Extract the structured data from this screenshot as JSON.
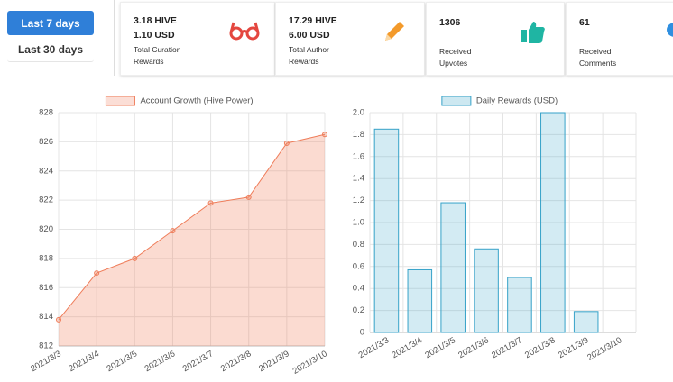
{
  "buttons": [
    "Last 7 days",
    "Last 30 days"
  ],
  "stats": [
    {
      "lines": [
        "3.18 HIVE",
        "1.10 USD"
      ],
      "label": "Total Curation Rewards"
    },
    {
      "lines": [
        "17.29 HIVE",
        "6.00 USD"
      ],
      "label": "Total Author Rewards"
    },
    {
      "lines": [
        "1306"
      ],
      "label": "Received Upvotes"
    },
    {
      "lines": [
        "61"
      ],
      "label": "Received Comments"
    }
  ],
  "chart_data": [
    {
      "type": "line",
      "categories": [
        "2021/3/3",
        "2021/3/4",
        "2021/3/5",
        "2021/3/6",
        "2021/3/7",
        "2021/3/8",
        "2021/3/9",
        "2021/3/10"
      ],
      "series": [
        {
          "name": "Account Growth (Hive Power)",
          "color": "#ef7d5a",
          "values": [
            813.8,
            817.0,
            818.0,
            819.9,
            821.8,
            822.2,
            825.9,
            826.5
          ]
        }
      ],
      "ylim": [
        812,
        828
      ],
      "yticks": [
        812,
        814,
        816,
        818,
        820,
        822,
        824,
        826,
        828
      ],
      "grid": true
    },
    {
      "type": "bar",
      "categories": [
        "2021/3/3",
        "2021/3/4",
        "2021/3/5",
        "2021/3/6",
        "2021/3/7",
        "2021/3/8",
        "2021/3/9",
        "2021/3/10"
      ],
      "series": [
        {
          "name": "Daily Rewards (USD)",
          "color": "#36a2c8",
          "values": [
            1.85,
            0.57,
            1.18,
            0.76,
            0.5,
            2.0,
            0.19,
            0
          ]
        }
      ],
      "ylim": [
        0,
        2
      ],
      "yticks": [
        0,
        0.2,
        0.4,
        0.6,
        0.8,
        {
          "value": 1,
          "label": "1.0"
        },
        1.2,
        1.4,
        1.6,
        1.8,
        {
          "value": 2,
          "label": "2.0"
        }
      ],
      "grid": true
    }
  ]
}
